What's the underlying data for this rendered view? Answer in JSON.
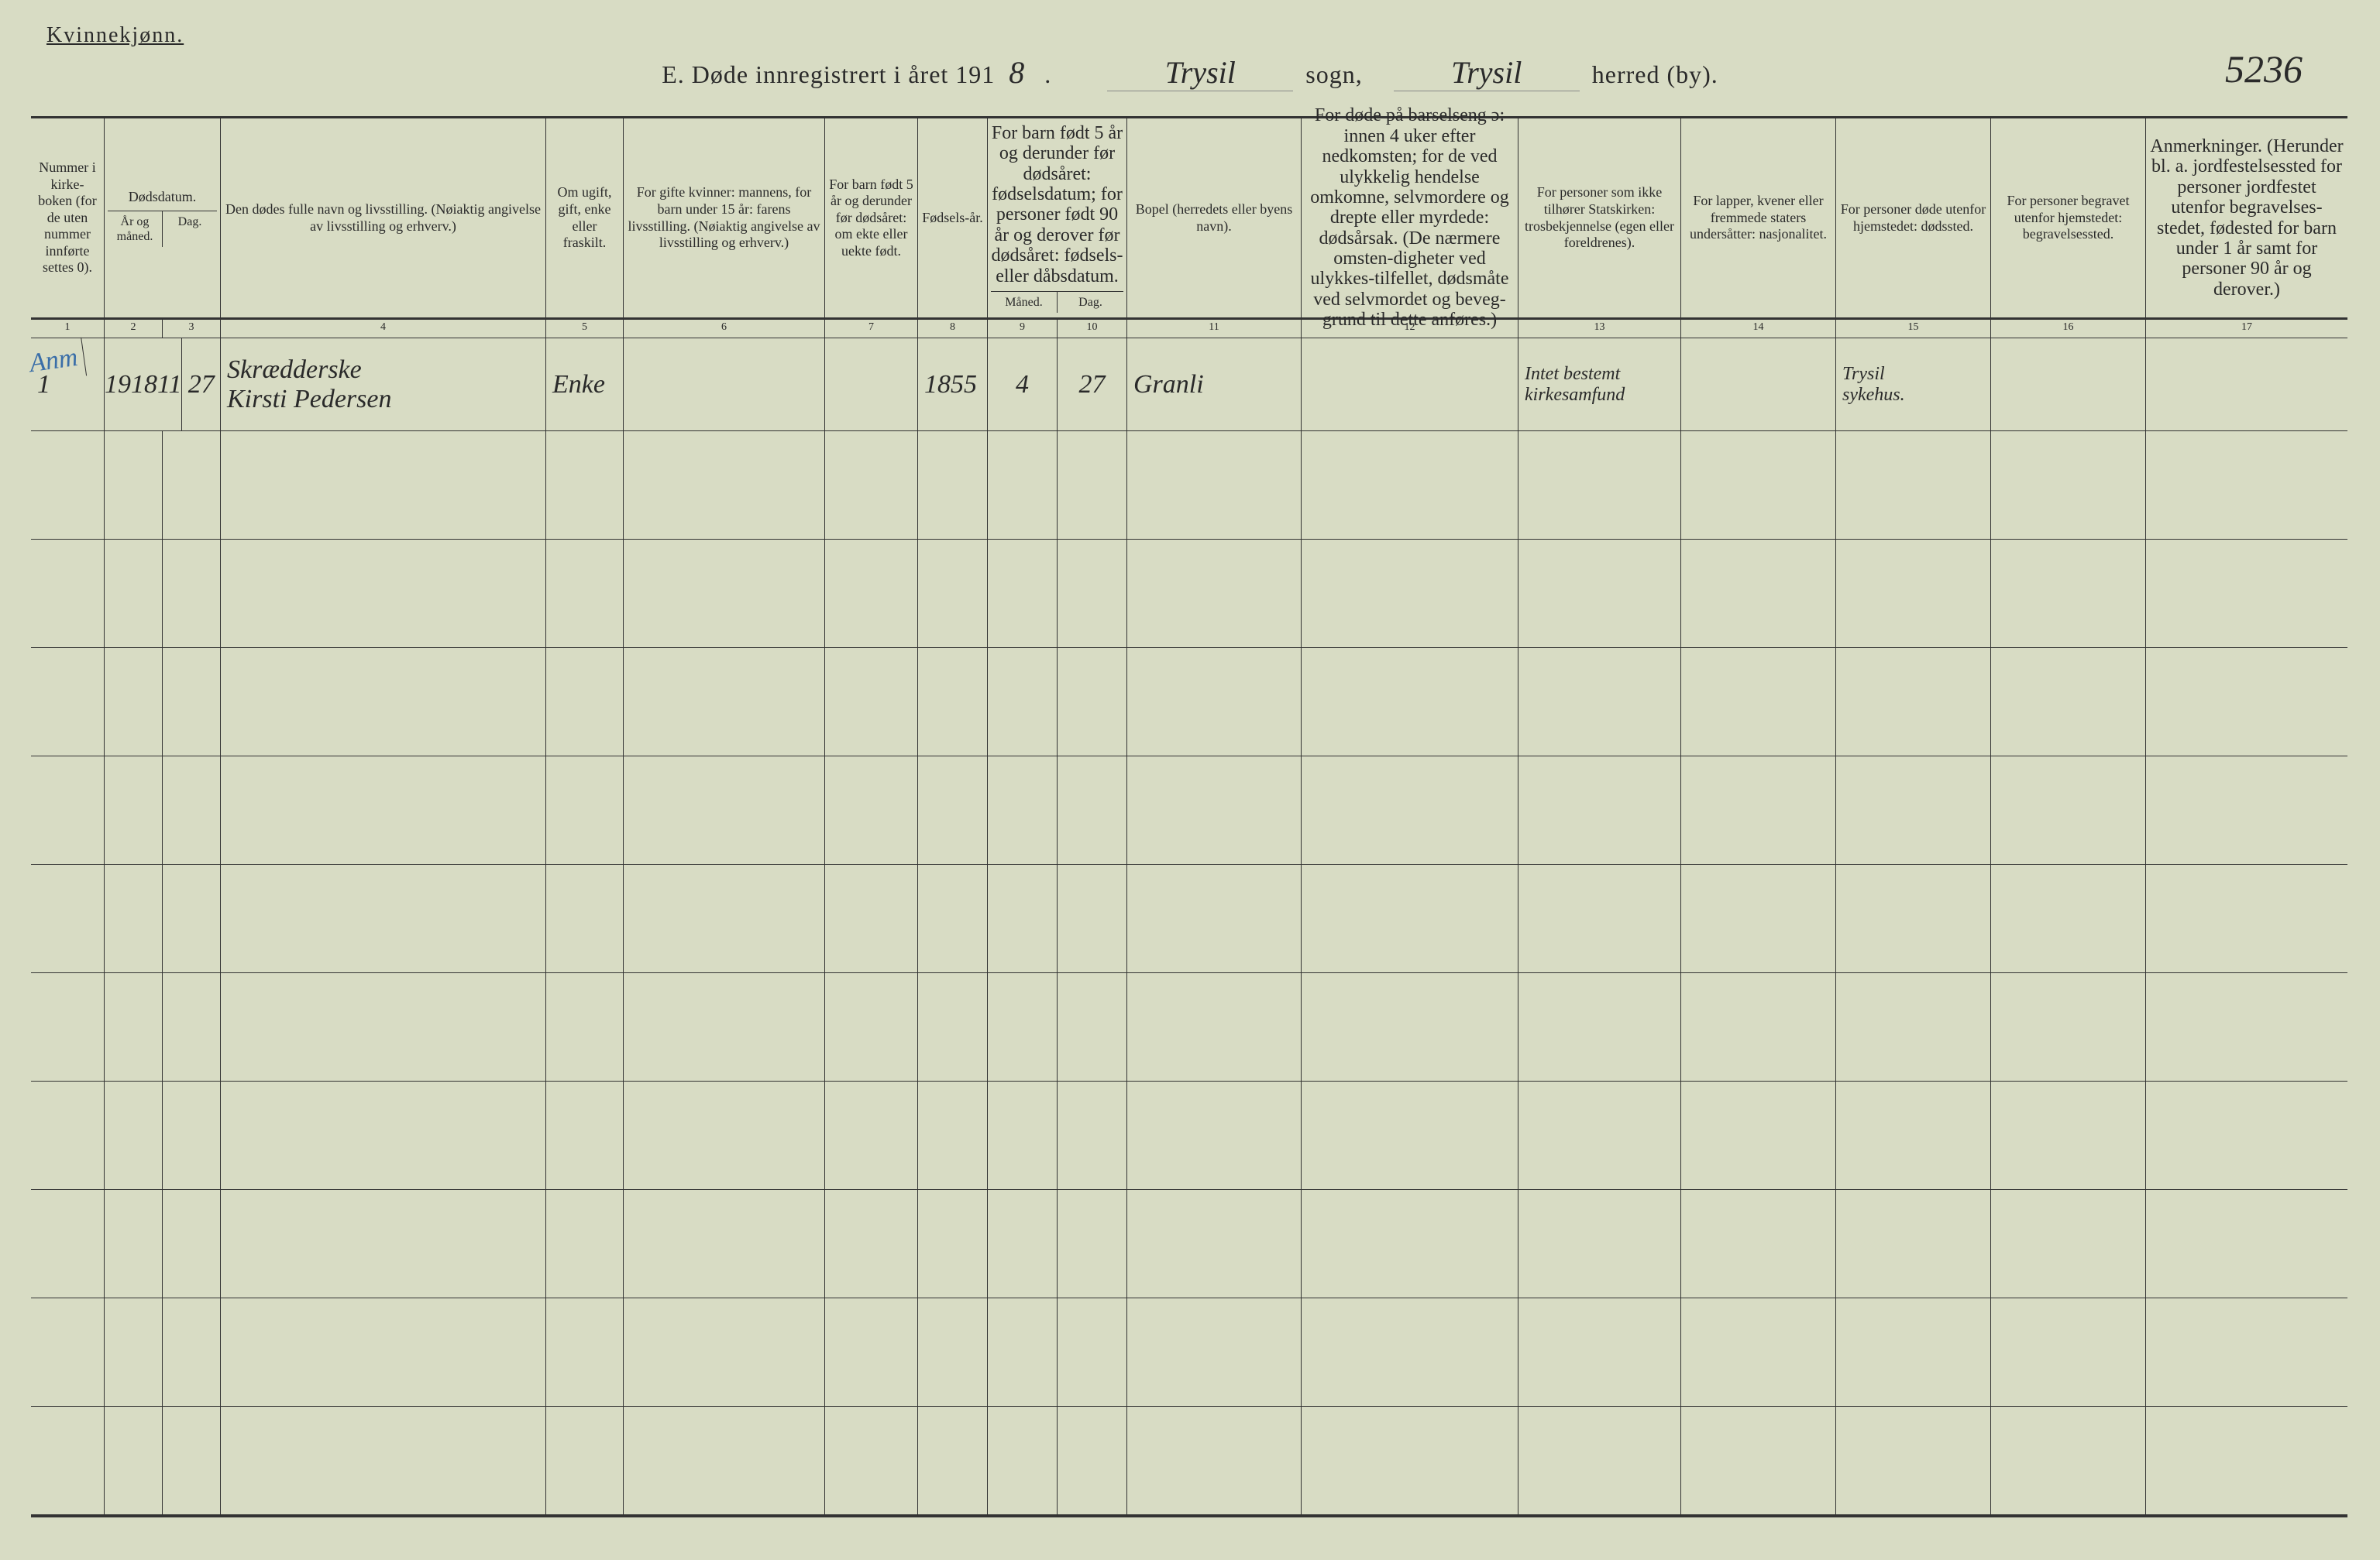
{
  "header": {
    "gender_label": "Kvinnekjønn.",
    "title_prefix": "E. Døde innregistrert i året 191",
    "year_last_digit": "8",
    "sogn_value": "Trysil",
    "sogn_label": "sogn,",
    "herred_value": "Trysil",
    "herred_label": "herred (by).",
    "page_number": "5236"
  },
  "columns": {
    "c1": "Nummer i kirke-boken (for de uten nummer innførte settes 0).",
    "c2_top": "Dødsdatum.",
    "c2_a": "År og måned.",
    "c2_b": "Dag.",
    "c4": "Den dødes fulle navn og livsstilling. (Nøiaktig angivelse av livsstilling og erhverv.)",
    "c5": "Om ugift, gift, enke eller fraskilt.",
    "c6": "For gifte kvinner: mannens, for barn under 15 år: farens livsstilling. (Nøiaktig angivelse av livsstilling og erhverv.)",
    "c7": "For barn født 5 år og derunder før dødsåret: om ekte eller uekte født.",
    "c8": "Fødsels-år.",
    "c9_top": "For barn født 5 år og derunder før dødsåret: fødselsdatum; for personer født 90 år og derover før dødsåret: fødsels- eller dåbsdatum.",
    "c9_a": "Måned.",
    "c9_b": "Dag.",
    "c11": "Bopel (herredets eller byens navn).",
    "c12": "For døde på barselseng ɔ: innen 4 uker efter nedkomsten; for de ved ulykkelig hendelse omkomne, selvmordere og drepte eller myrdede: dødsårsak. (De nærmere omsten-digheter ved ulykkes-tilfellet, dødsmåte ved selvmordet og beveg-grund til dette anføres.)",
    "c13": "For personer som ikke tilhører Statskirken: trosbekjennelse (egen eller foreldrenes).",
    "c14": "For lapper, kvener eller fremmede staters undersåtter: nasjonalitet.",
    "c15": "For personer døde utenfor hjemstedet: dødssted.",
    "c16": "For personer begravet utenfor hjemstedet: begravelsessted.",
    "c17": "Anmerkninger. (Herunder bl. a. jordfestelsessted for personer jordfestet utenfor begravelses-stedet, fødested for barn under 1 år samt for personer 90 år og derover.)"
  },
  "colnums": [
    "1",
    "2",
    "3",
    "4",
    "5",
    "6",
    "7",
    "8",
    "9",
    "10",
    "11",
    "12",
    "13",
    "14",
    "15",
    "16",
    "17"
  ],
  "entry": {
    "margin_annotation": "Anm",
    "number": "1",
    "year_month_1": "1918",
    "year_month_2": "11",
    "day": "27",
    "name_line1": "Skrædderske",
    "name_line2": "Kirsti Pedersen",
    "status": "Enke",
    "spouse": "",
    "birth_year": "1855",
    "birth_month": "4",
    "birth_day": "27",
    "residence": "Granli",
    "cause": "",
    "church_line1": "Intet bestemt",
    "church_line2": "kirkesamfund",
    "nationality": "",
    "deathplace_line1": "Trysil",
    "deathplace_line2": "sykehus.",
    "burial": "",
    "remarks": ""
  },
  "style": {
    "paper_bg": "#d8dcc4",
    "rule_color": "#333333",
    "ink_script": "#2a2a2a",
    "blue_ink": "#3a6ea8",
    "blank_row_count": 10
  }
}
